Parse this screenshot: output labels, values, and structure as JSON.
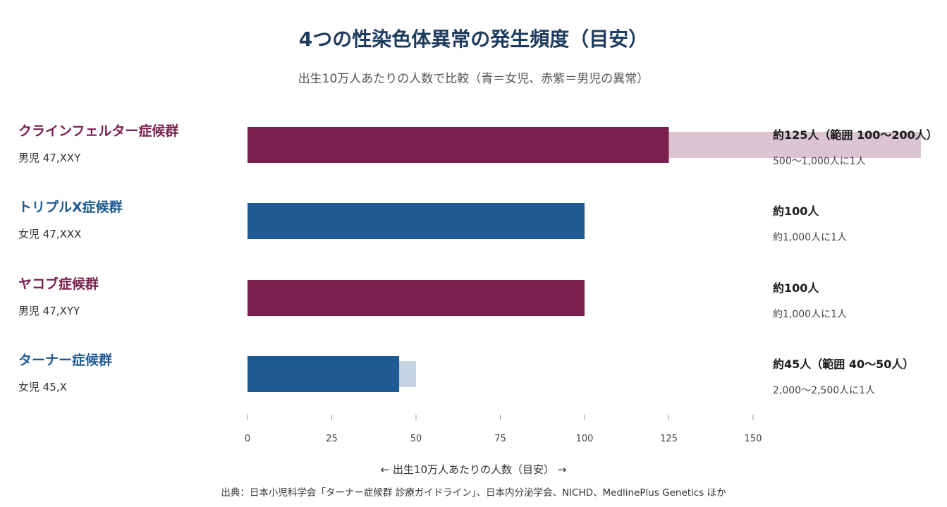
{
  "header": {
    "title": "4つの性染色体異常の発生頻度（目安）",
    "subtitle": "出生10万人あたりの人数で比較（青＝女児、赤紫＝男児の異常）"
  },
  "footer": {
    "xlabel": "← 出生10万人あたりの人数（目安） →",
    "source": "出典：日本小児科学会「ターナー症候群 診療ガイドライン」、日本内分泌学会、NICHD、MedlinePlus Genetics ほか"
  },
  "colors": {
    "female": "#1f5a92",
    "male": "#7a2050",
    "female_range": "#c5d4e3",
    "male_range": "#dcc4d1"
  },
  "chart_data": {
    "type": "bar",
    "orientation": "horizontal",
    "title": "4つの性染色体異常の発生頻度（目安）",
    "subtitle": "出生10万人あたりの人数で比較（青＝女児、赤紫＝男児の異常）",
    "xlabel": "← 出生10万人あたりの人数（目安） →",
    "xlim": [
      0,
      150
    ],
    "xticks": [
      0,
      25,
      50,
      75,
      100,
      125,
      150
    ],
    "grid": false,
    "categories": [
      {
        "name": "クラインフェルター症候群",
        "karyotype": "男児 47,XXY",
        "sex": "male",
        "value": 125,
        "range": [
          100,
          200
        ],
        "value_label": "約125人（範囲 100〜200人）",
        "ratio_label": "500〜1,000人に1人"
      },
      {
        "name": "トリプルX症候群",
        "karyotype": "女児 47,XXX",
        "sex": "female",
        "value": 100,
        "range": null,
        "value_label": "約100人",
        "ratio_label": "約1,000人に1人"
      },
      {
        "name": "ヤコブ症候群",
        "karyotype": "男児 47,XYY",
        "sex": "male",
        "value": 100,
        "range": null,
        "value_label": "約100人",
        "ratio_label": "約1,000人に1人"
      },
      {
        "name": "ターナー症候群",
        "karyotype": "女児 45,X",
        "sex": "female",
        "value": 45,
        "range": [
          40,
          50
        ],
        "value_label": "約45人（範囲 40〜50人）",
        "ratio_label": "2,000〜2,500人に1人"
      }
    ]
  }
}
